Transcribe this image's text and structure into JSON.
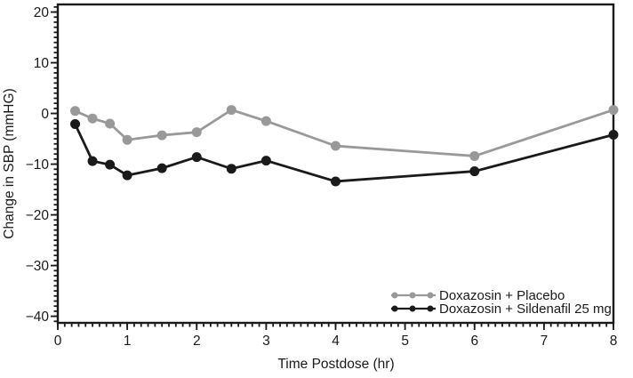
{
  "figure": {
    "background": "#ffffff",
    "axis_color": "#1a1a1a"
  },
  "chart_data": {
    "type": "line",
    "title": "",
    "xlabel": "Time Postdose (hr)",
    "ylabel": "Change in SBP (mmHG)",
    "xlim": [
      0,
      8
    ],
    "ylim": [
      -41.3,
      21.5
    ],
    "x_major_ticks": [
      0,
      1,
      2,
      3,
      4,
      5,
      6,
      7,
      8
    ],
    "x_minor_step": 0.1,
    "y_major_ticks": [
      20,
      10,
      0,
      -10,
      -20,
      -30,
      -40
    ],
    "y_minor_step": 1,
    "grid": false,
    "legend_position": "inside-bottom-right",
    "x": [
      0.25,
      0.5,
      0.75,
      1,
      1.5,
      2,
      2.5,
      3,
      4,
      6,
      8
    ],
    "series": [
      {
        "name": "Doxazosin + Placebo",
        "color": "#999999",
        "values": [
          0.5,
          -1.0,
          -2.0,
          -5.2,
          -4.3,
          -3.7,
          0.7,
          -1.5,
          -6.4,
          -8.4,
          0.7
        ]
      },
      {
        "name": "Doxazosin + Sildenafil 25 mg",
        "color": "#1a1a1a",
        "values": [
          -2.1,
          -9.4,
          -10.1,
          -12.2,
          -10.8,
          -8.6,
          -10.9,
          -9.3,
          -13.4,
          -11.4,
          -4.2
        ]
      }
    ]
  }
}
